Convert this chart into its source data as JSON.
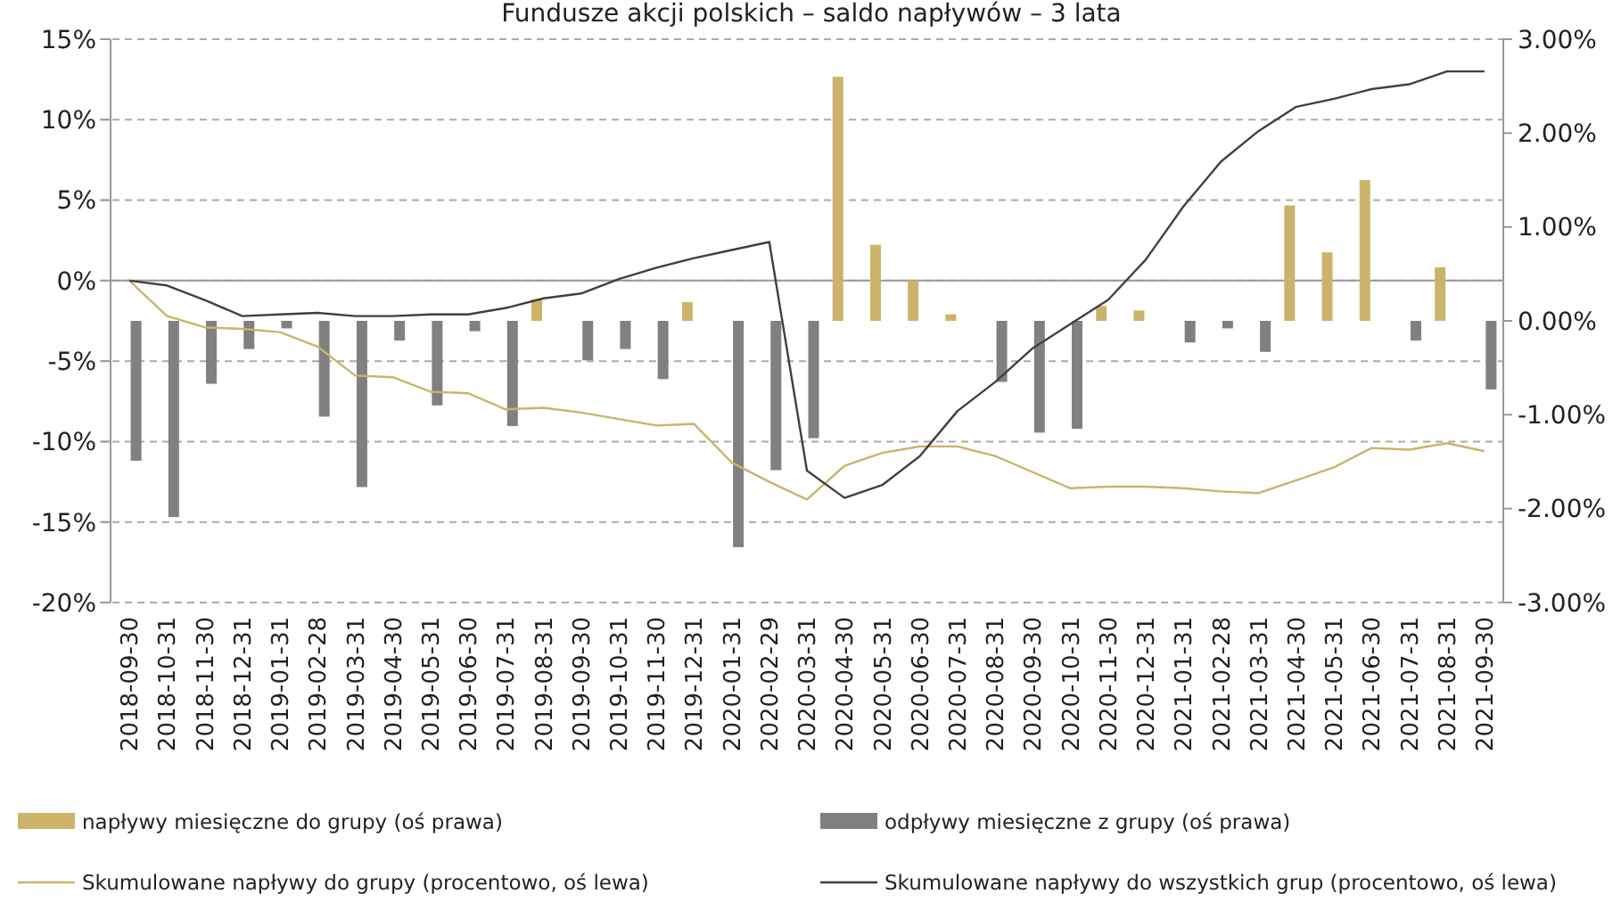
{
  "chart_data": {
    "type": "bar",
    "title": "Fundusze akcji polskich – saldo napływów – 3 lata",
    "categories": [
      "2018-09-30",
      "2018-10-31",
      "2018-11-30",
      "2018-12-31",
      "2019-01-31",
      "2019-02-28",
      "2019-03-31",
      "2019-04-30",
      "2019-05-31",
      "2019-06-30",
      "2019-07-31",
      "2019-08-31",
      "2019-09-30",
      "2019-10-31",
      "2019-11-30",
      "2019-12-31",
      "2020-01-31",
      "2020-02-29",
      "2020-03-31",
      "2020-04-30",
      "2020-05-31",
      "2020-06-30",
      "2020-07-31",
      "2020-08-31",
      "2020-09-30",
      "2020-10-31",
      "2020-11-30",
      "2020-12-31",
      "2021-01-31",
      "2021-02-28",
      "2021-03-31",
      "2021-04-30",
      "2021-05-31",
      "2021-06-30",
      "2021-07-31",
      "2021-08-31",
      "2021-09-30"
    ],
    "series": [
      {
        "name": "napływy miesięczne do grupy (oś prawa)",
        "axis": "y2",
        "color": "#cbb46a",
        "values": [
          null,
          null,
          null,
          null,
          null,
          null,
          null,
          null,
          null,
          null,
          null,
          0.23,
          null,
          null,
          null,
          0.2,
          null,
          null,
          null,
          2.6,
          0.81,
          0.43,
          0.07,
          null,
          null,
          null,
          0.16,
          0.11,
          null,
          null,
          null,
          1.23,
          0.73,
          1.5,
          null,
          0.57,
          null
        ]
      },
      {
        "name": "odpływy miesięczne z grupy (oś prawa)",
        "axis": "y2",
        "color": "#808080",
        "values": [
          -1.49,
          -2.09,
          -0.67,
          -0.3,
          -0.08,
          -1.02,
          -1.77,
          -0.21,
          -0.9,
          -0.11,
          -1.12,
          null,
          -0.42,
          -0.3,
          -0.62,
          null,
          -2.41,
          -1.59,
          -1.25,
          null,
          null,
          null,
          null,
          -0.65,
          -1.19,
          -1.15,
          null,
          null,
          -0.23,
          -0.08,
          -0.33,
          null,
          null,
          null,
          -0.21,
          null,
          -0.73
        ]
      },
      {
        "name": "Skumulowane napływy do grupy (procentowo, oś lewa)",
        "type": "line",
        "color": "#cbb46a",
        "values": [
          0,
          -2.2,
          -2.9,
          -3.0,
          -3.2,
          -4.1,
          -5.9,
          -6.0,
          -6.9,
          -7.0,
          -8.0,
          -7.9,
          -8.2,
          -8.6,
          -9.0,
          -8.9,
          -11.3,
          -12.5,
          -13.6,
          -11.5,
          -10.7,
          -10.3,
          -10.3,
          -10.9,
          -11.9,
          -12.9,
          -12.8,
          -12.8,
          -12.9,
          -13.1,
          -13.2,
          -12.4,
          -11.6,
          -10.4,
          -10.5,
          -10.1,
          -10.6
        ]
      },
      {
        "name": "Skumulowane napływy do wszystkich grup (procentowo, oś lewa)",
        "type": "line",
        "color": "#404040",
        "values": [
          0,
          -0.3,
          -1.2,
          -2.2,
          -2.1,
          -2.0,
          -2.2,
          -2.2,
          -2.1,
          -2.1,
          -1.7,
          -1.1,
          -0.8,
          0.1,
          0.8,
          1.4,
          1.9,
          2.4,
          -11.8,
          -13.5,
          -12.7,
          -10.9,
          -8.1,
          -6.3,
          -4.2,
          -2.7,
          -1.2,
          1.3,
          4.6,
          7.4,
          9.3,
          10.8,
          11.3,
          11.9,
          12.2,
          13.0,
          13.0
        ]
      }
    ],
    "ylim": [
      -20,
      15
    ],
    "yticks": [
      {
        "value": -20,
        "label": "-20%"
      },
      {
        "value": -15,
        "label": "-15%"
      },
      {
        "value": -10,
        "label": "-10%"
      },
      {
        "value": -5,
        "label": "-5%"
      },
      {
        "value": 0,
        "label": "0%"
      },
      {
        "value": 5,
        "label": "5%"
      },
      {
        "value": 10,
        "label": "10%"
      },
      {
        "value": 15,
        "label": "15%"
      }
    ],
    "y2lim": [
      -3,
      3
    ],
    "y2ticks": [
      {
        "value": -3,
        "label": "-3.00%"
      },
      {
        "value": -2,
        "label": "-2.00%"
      },
      {
        "value": -1,
        "label": "-1.00%"
      },
      {
        "value": 0,
        "label": "0.00%"
      },
      {
        "value": 1,
        "label": "1.00%"
      },
      {
        "value": 2,
        "label": "2.00%"
      },
      {
        "value": 3,
        "label": "3.00%"
      }
    ],
    "ref_lines": [
      {
        "axis": "y",
        "value": 0,
        "color": "#999999"
      }
    ],
    "grid": "y",
    "legend": "bottom",
    "line_style": "solid",
    "marker": "none"
  }
}
